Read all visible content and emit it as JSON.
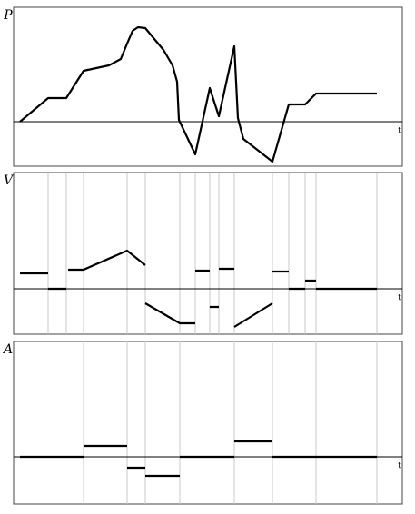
{
  "chart_data": [
    {
      "type": "line",
      "y_label": "P",
      "x_label": "t",
      "xlim": [
        0,
        421
      ],
      "ylim": [
        -49,
        126
      ],
      "series": [
        {
          "color": "#000000",
          "x": [
            0,
            31,
            51,
            70,
            98,
            111,
            118,
            124,
            130,
            138,
            158,
            168,
            173,
            175,
            193,
            209,
            219,
            236,
            240,
            246,
            278,
            296,
            314,
            326,
            393
          ],
          "values": [
            0,
            26,
            26,
            56,
            62,
            69,
            86,
            100,
            104,
            103,
            79,
            62,
            44,
            2,
            -36,
            37,
            6,
            83,
            4,
            -19,
            -44,
            19,
            19,
            31,
            31
          ]
        }
      ]
    },
    {
      "type": "line",
      "y_label": "V",
      "x_label": "t",
      "xlim": [
        0,
        421
      ],
      "ylim": [
        -50,
        128
      ],
      "series": [
        {
          "color": "#000000",
          "x": [
            0,
            31,
            31,
            31,
            51,
            51,
            53,
            70,
            118,
            138,
            138,
            138,
            176,
            193,
            193,
            193,
            209,
            209,
            209,
            219,
            219,
            219,
            236,
            236,
            236,
            278,
            278,
            278,
            296,
            296,
            296,
            314,
            314,
            314,
            326,
            326,
            326,
            393
          ],
          "values": [
            17,
            17,
            null,
            0,
            0,
            null,
            21,
            21,
            42,
            26,
            null,
            -16,
            -38,
            -38,
            null,
            20,
            20,
            null,
            -20,
            -20,
            null,
            22,
            22,
            null,
            -42,
            -16,
            null,
            19,
            19,
            null,
            0,
            0,
            null,
            9,
            9,
            null,
            0,
            0
          ]
        }
      ]
    },
    {
      "type": "line",
      "y_label": "A",
      "x_label": "t",
      "xlim": [
        0,
        421
      ],
      "ylim": [
        -52,
        127
      ],
      "series": [
        {
          "color": "#000000",
          "x": [
            0,
            70,
            70,
            70,
            118,
            118,
            118,
            138,
            138,
            138,
            176,
            176,
            176,
            236,
            236,
            236,
            278,
            278,
            278,
            393
          ],
          "values": [
            0,
            0,
            null,
            12,
            12,
            null,
            -12,
            -12,
            null,
            -21,
            -21,
            null,
            0,
            0,
            null,
            17,
            17,
            null,
            0,
            0
          ]
        }
      ]
    }
  ]
}
